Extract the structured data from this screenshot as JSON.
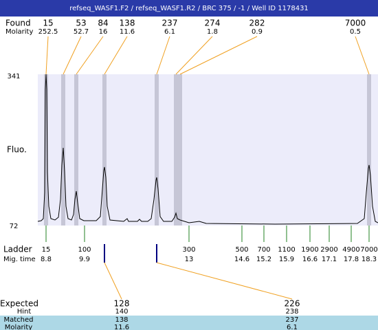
{
  "header": {
    "title": "refseq_WASF1.F2 / refseq_WASF1.R2 / BRC 375 / -1 / Well ID 1178431"
  },
  "found": {
    "label": "Found",
    "molarity_label": "Molarity",
    "peaks": [
      {
        "size": "15",
        "molarity": "252.5"
      },
      {
        "size": "53",
        "molarity": "52.7"
      },
      {
        "size": "84",
        "molarity": "16"
      },
      {
        "size": "138",
        "molarity": "11.6"
      },
      {
        "size": "237",
        "molarity": "6.1"
      },
      {
        "size": "274",
        "molarity": "1.8"
      },
      {
        "size": "282",
        "molarity": "0.9"
      },
      {
        "size": "7000",
        "molarity": "0.5"
      }
    ]
  },
  "y_axis": {
    "label": "Fluo.",
    "max": "341",
    "min": "72"
  },
  "ladder": {
    "label": "Ladder",
    "time_label": "Mig. time",
    "bands": [
      {
        "size": "15",
        "time": "8.8"
      },
      {
        "size": "100",
        "time": "9.9"
      },
      {
        "size": "300",
        "time": "13"
      },
      {
        "size": "500",
        "time": "14.6"
      },
      {
        "size": "700",
        "time": "15.2"
      },
      {
        "size": "1100",
        "time": "15.9"
      },
      {
        "size": "1900",
        "time": "16.6"
      },
      {
        "size": "2900",
        "time": "17.1"
      },
      {
        "size": "4900",
        "time": "17.8"
      },
      {
        "size": "7000",
        "time": "18.3"
      }
    ]
  },
  "expected": {
    "label": "Expected",
    "hint_label": "Hint",
    "matched_label": "Matched",
    "molarity_label": "Molarity",
    "items": [
      {
        "size": "128",
        "hint": "140",
        "matched": "138",
        "molarity": "11.6"
      },
      {
        "size": "226",
        "hint": "238",
        "matched": "237",
        "molarity": "6.1"
      }
    ]
  }
}
